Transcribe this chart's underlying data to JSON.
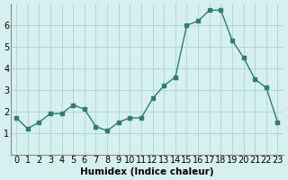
{
  "x": [
    0,
    1,
    2,
    3,
    4,
    5,
    6,
    7,
    8,
    9,
    10,
    11,
    12,
    13,
    14,
    15,
    16,
    17,
    18,
    19,
    20,
    21,
    22,
    23
  ],
  "y": [
    1.7,
    1.2,
    1.5,
    1.9,
    1.9,
    2.3,
    2.1,
    1.3,
    1.1,
    1.5,
    1.7,
    1.7,
    2.6,
    3.2,
    3.6,
    6.0,
    6.2,
    6.7,
    6.7,
    5.3,
    4.5,
    3.5,
    3.1,
    1.5
  ],
  "line_color": "#2e7d6e",
  "bg_color": "#d6f0f0",
  "grid_color": "#b0d8d8",
  "xlabel": "Humidex (Indice chaleur)",
  "ylim": [
    0,
    7
  ],
  "xlim": [
    -0.5,
    23.5
  ],
  "yticks": [
    1,
    2,
    3,
    4,
    5,
    6
  ],
  "xticks": [
    0,
    1,
    2,
    3,
    4,
    5,
    6,
    7,
    8,
    9,
    10,
    11,
    12,
    13,
    14,
    15,
    16,
    17,
    18,
    19,
    20,
    21,
    22,
    23
  ],
  "xlabel_fontsize": 7.5,
  "tick_fontsize": 7
}
